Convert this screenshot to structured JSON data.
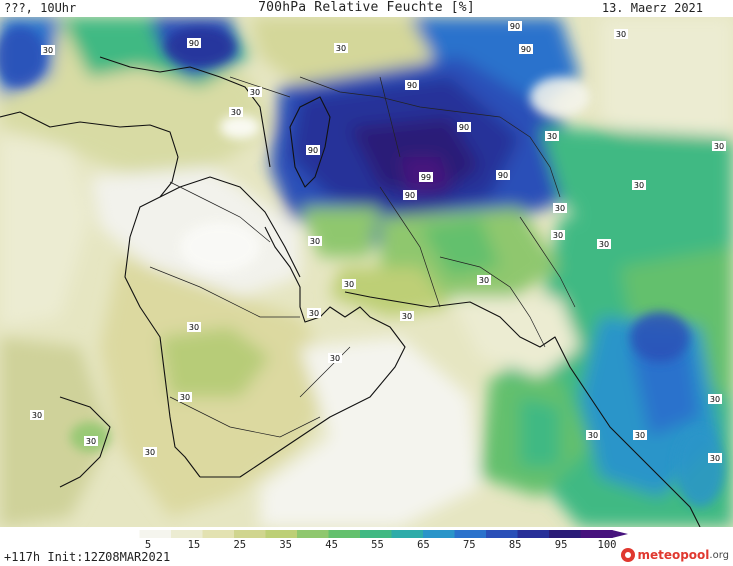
{
  "header": {
    "left": "???, 10Uhr",
    "title": "700hPa Relative Feuchte [%]",
    "date": "13. Maerz 2021"
  },
  "footer": {
    "run_info": "+117h Init:12Z08MAR2021",
    "logo_name": "meteopool",
    "logo_tld": ".org"
  },
  "legend": {
    "ticks": [
      "5",
      "15",
      "25",
      "35",
      "45",
      "55",
      "65",
      "75",
      "85",
      "95",
      "100"
    ],
    "colors": [
      "#ffffff",
      "#f5f5ee",
      "#ececd2",
      "#e3e2b2",
      "#d0d58f",
      "#bdcf76",
      "#8fc76e",
      "#64c06d",
      "#41b983",
      "#2eaca9",
      "#2a95c9",
      "#2a72cc",
      "#2a4fb8",
      "#283099",
      "#2a1c78",
      "#46127d"
    ]
  },
  "contour_labels": [
    {
      "text": "90",
      "kind": "high"
    },
    {
      "text": "90",
      "kind": "high"
    },
    {
      "text": "90",
      "kind": "high"
    },
    {
      "text": "90",
      "kind": "high"
    },
    {
      "text": "90",
      "kind": "high"
    },
    {
      "text": "90",
      "kind": "high"
    },
    {
      "text": "90",
      "kind": "high"
    },
    {
      "text": "90",
      "kind": "high"
    },
    {
      "text": "99",
      "kind": "high"
    },
    {
      "text": "30",
      "kind": "low"
    },
    {
      "text": "30",
      "kind": "low"
    },
    {
      "text": "30",
      "kind": "low"
    },
    {
      "text": "30",
      "kind": "low"
    },
    {
      "text": "30",
      "kind": "low"
    },
    {
      "text": "30",
      "kind": "low"
    },
    {
      "text": "30",
      "kind": "low"
    },
    {
      "text": "30",
      "kind": "low"
    },
    {
      "text": "30",
      "kind": "low"
    },
    {
      "text": "30",
      "kind": "low"
    },
    {
      "text": "30",
      "kind": "low"
    },
    {
      "text": "30",
      "kind": "low"
    },
    {
      "text": "30",
      "kind": "low"
    },
    {
      "text": "30",
      "kind": "low"
    },
    {
      "text": "30",
      "kind": "low"
    },
    {
      "text": "30",
      "kind": "low"
    },
    {
      "text": "30",
      "kind": "low"
    },
    {
      "text": "30",
      "kind": "low"
    },
    {
      "text": "30",
      "kind": "low"
    },
    {
      "text": "30",
      "kind": "low"
    },
    {
      "text": "30",
      "kind": "low"
    },
    {
      "text": "30",
      "kind": "low"
    },
    {
      "text": "30",
      "kind": "low"
    },
    {
      "text": "30",
      "kind": "low"
    },
    {
      "text": "30",
      "kind": "low"
    },
    {
      "text": "30",
      "kind": "low"
    }
  ]
}
